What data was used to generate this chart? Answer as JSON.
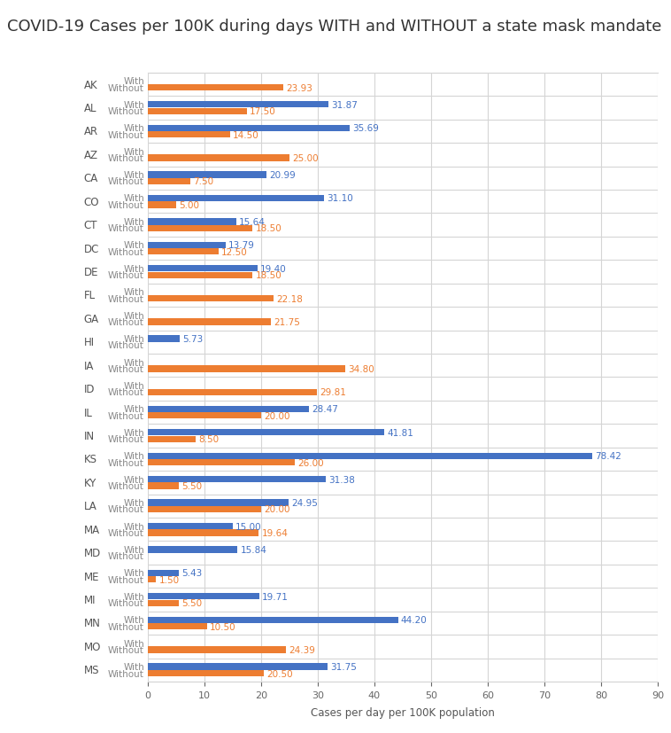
{
  "title": "COVID-19 Cases per 100K during days WITH and WITHOUT a state mask mandate",
  "xlabel": "Cases per day per 100K population",
  "states": [
    "AK",
    "AL",
    "AR",
    "AZ",
    "CA",
    "CO",
    "CT",
    "DC",
    "DE",
    "FL",
    "GA",
    "HI",
    "IA",
    "ID",
    "IL",
    "IN",
    "KS",
    "KY",
    "LA",
    "MA",
    "MD",
    "ME",
    "MI",
    "MN",
    "MO",
    "MS"
  ],
  "with_values": [
    0,
    31.87,
    35.69,
    0,
    20.99,
    31.1,
    15.64,
    13.79,
    19.4,
    0,
    0,
    5.73,
    0,
    0,
    28.47,
    41.81,
    78.42,
    31.38,
    24.95,
    15.0,
    15.84,
    5.43,
    19.71,
    44.2,
    0,
    31.75
  ],
  "without_values": [
    23.93,
    17.5,
    14.5,
    25.0,
    7.5,
    5.0,
    18.5,
    12.5,
    18.5,
    22.18,
    21.75,
    0,
    34.8,
    29.81,
    20.0,
    8.5,
    26.0,
    5.5,
    20.0,
    19.64,
    0,
    1.5,
    5.5,
    10.5,
    24.39,
    20.5
  ],
  "with_color": "#4472c4",
  "without_color": "#ed7d31",
  "bar_height": 0.55,
  "xlim": [
    0,
    90
  ],
  "xticks": [
    0,
    10,
    20,
    30,
    40,
    50,
    60,
    70,
    80,
    90
  ],
  "title_fontsize": 13,
  "label_fontsize": 8,
  "tick_fontsize": 8,
  "value_fontsize": 7.5,
  "state_fontsize": 8.5,
  "background_color": "#ffffff",
  "grid_color": "#d5d5d5"
}
